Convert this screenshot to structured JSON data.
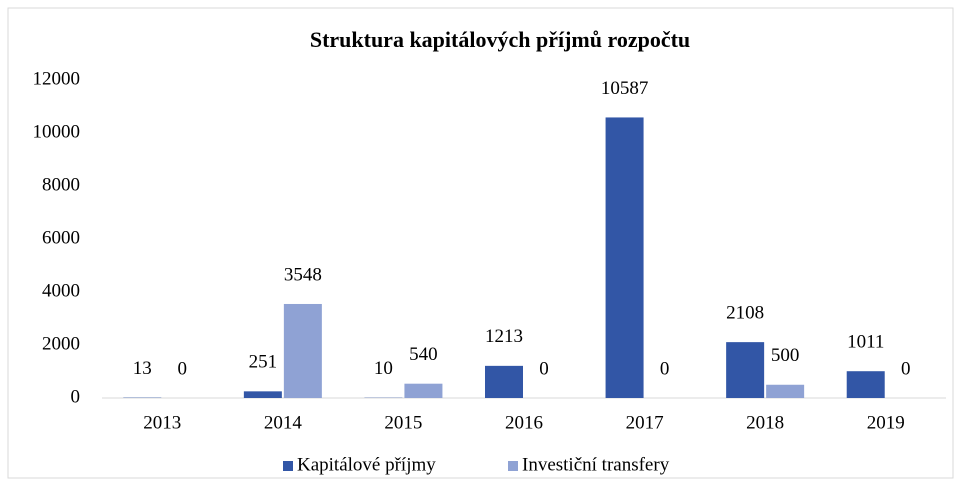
{
  "chart_data": {
    "type": "bar",
    "title": "Struktura kapitálových příjmů rozpočtu",
    "categories": [
      "2013",
      "2014",
      "2015",
      "2016",
      "2017",
      "2018",
      "2019"
    ],
    "series": [
      {
        "name": "Kapitálové příjmy",
        "color": "#3256a6",
        "values": [
          13,
          251,
          10,
          1213,
          10587,
          2108,
          1011
        ]
      },
      {
        "name": "Investiční transfery",
        "color": "#8fa2d4",
        "values": [
          0,
          3548,
          540,
          0,
          0,
          500,
          0
        ]
      }
    ],
    "ylim": [
      0,
      12000
    ],
    "yticks": [
      0,
      2000,
      4000,
      6000,
      8000,
      10000,
      12000
    ],
    "grid": false,
    "legend": "bottom"
  }
}
